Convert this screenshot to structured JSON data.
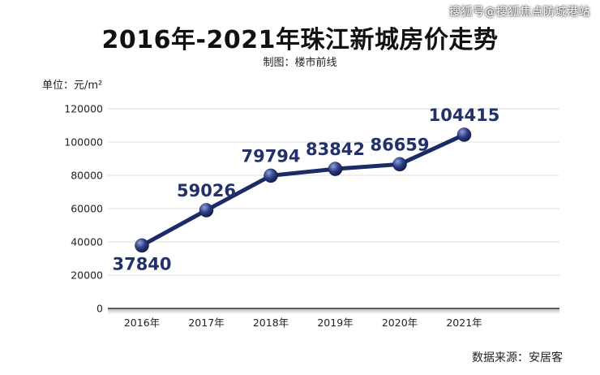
{
  "watermark": "搜狐号@搜狐焦点防城港站",
  "chart_data": {
    "type": "line",
    "title": "2016年-2021年珠江新城房价走势",
    "subtitle": "制图：楼市前线",
    "ylabel": "单位：元/m²",
    "source": "数据来源：安居客",
    "categories": [
      "2016年",
      "2017年",
      "2018年",
      "2019年",
      "2020年",
      "2021年"
    ],
    "series": [
      {
        "values": [
          37840,
          59026,
          79794,
          83842,
          86659,
          104415
        ]
      }
    ],
    "data_labels": [
      "37840",
      "59026",
      "79794",
      "83842",
      "86659",
      "104415"
    ],
    "yticks": [
      0,
      20000,
      40000,
      60000,
      80000,
      100000,
      120000
    ],
    "ytick_labels": [
      "0",
      "20000",
      "40000",
      "60000",
      "80000",
      "100000",
      "120000"
    ],
    "ylim": [
      0,
      120000
    ],
    "grid": true,
    "line_color": "#1c2a66",
    "marker_color": "#2e3f86"
  }
}
